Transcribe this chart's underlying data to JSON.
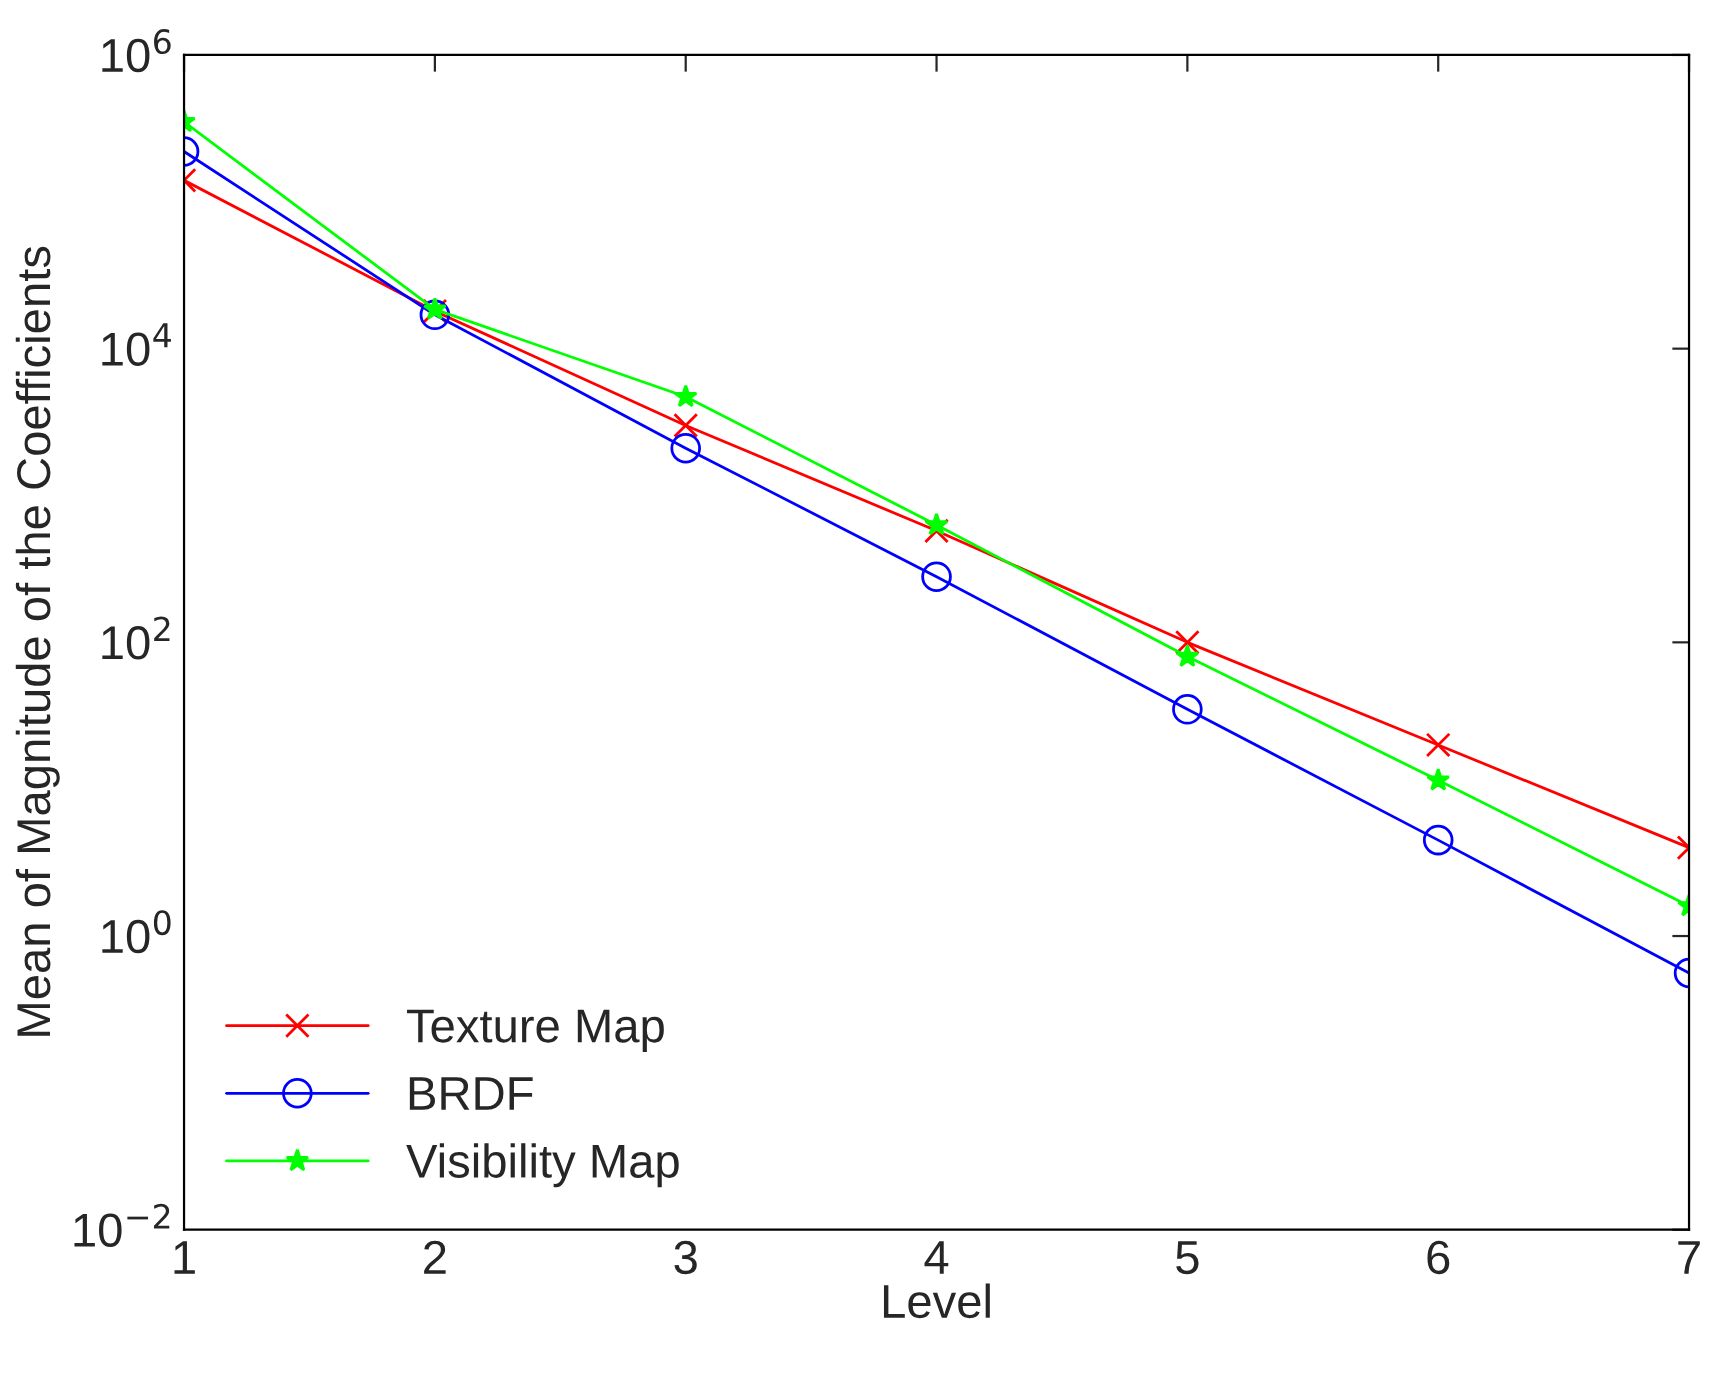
{
  "chart_data": {
    "type": "line",
    "xlabel": "Level",
    "ylabel": "Mean of Magnitude of the Coefficients",
    "x": [
      1,
      2,
      3,
      4,
      5,
      6,
      7
    ],
    "log": "y",
    "xlim": [
      1,
      7
    ],
    "xticks": [
      1,
      2,
      3,
      4,
      5,
      6,
      7
    ],
    "ylim": [
      0.01,
      1000000
    ],
    "yticks": [
      {
        "value": 0.01,
        "label": "10$^{−2}$"
      },
      {
        "value": 1,
        "label": "10$^{0}$"
      },
      {
        "value": 100,
        "label": "10$^{2}$"
      },
      {
        "value": 10000,
        "label": "10$^{4}$"
      },
      {
        "value": 1000000,
        "label": "10$^{6}$"
      }
    ],
    "grid": false,
    "legend": "bottom left",
    "line_style": "solid",
    "series": [
      {
        "name": "Texture Map",
        "color": "#ff0000",
        "marker": "cross",
        "values": [
          140000,
          18000,
          3000,
          575,
          100,
          20,
          4
        ]
      },
      {
        "name": "BRDF",
        "color": "#0000ff",
        "marker": "circle",
        "values": [
          220000,
          17000,
          2100,
          280,
          35,
          4.5,
          0.56
        ]
      },
      {
        "name": "Visibility Map",
        "color": "#00ff00",
        "marker": "star",
        "values": [
          350000,
          18500,
          4700,
          630,
          80,
          11.5,
          1.6
        ]
      }
    ]
  }
}
